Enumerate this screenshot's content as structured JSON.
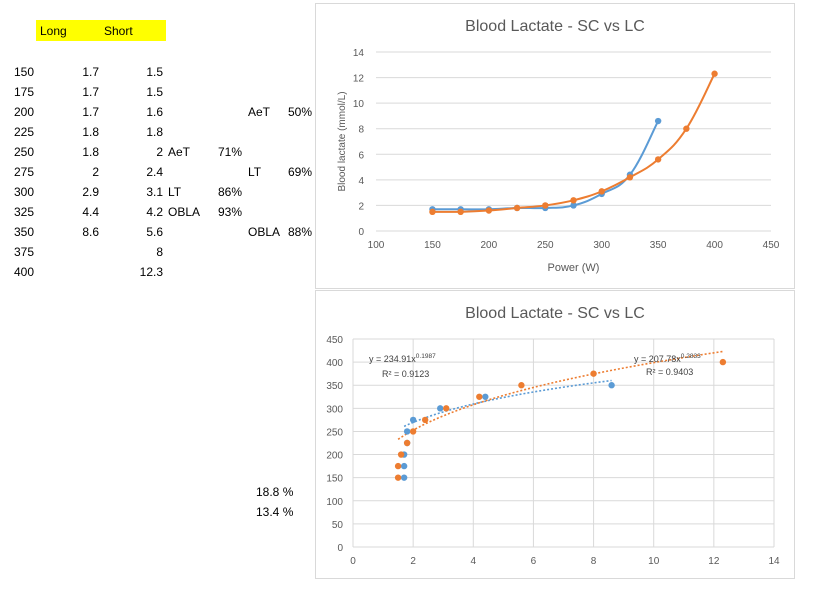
{
  "sheet": {
    "header": {
      "long": "Long",
      "short": "Short"
    },
    "rows": [
      {
        "power": "150",
        "long": "1.7",
        "short": "1.5"
      },
      {
        "power": "175",
        "long": "1.7",
        "short": "1.5"
      },
      {
        "power": "200",
        "long": "1.7",
        "short": "1.6"
      },
      {
        "power": "225",
        "long": "1.8",
        "short": "1.8"
      },
      {
        "power": "250",
        "long": "1.8",
        "short": "2"
      },
      {
        "power": "275",
        "long": "2",
        "short": "2.4"
      },
      {
        "power": "300",
        "long": "2.9",
        "short": "3.1"
      },
      {
        "power": "325",
        "long": "4.4",
        "short": "4.2"
      },
      {
        "power": "350",
        "long": "8.6",
        "short": "5.6"
      },
      {
        "power": "375",
        "long": "",
        "short": "8"
      },
      {
        "power": "400",
        "long": "",
        "short": "12.3"
      }
    ],
    "notes_mid": [
      {
        "label": "AeT",
        "pct": "71%"
      },
      {
        "label": "LT",
        "pct": "86%"
      },
      {
        "label": "OBLA",
        "pct": "93%"
      }
    ],
    "notes_right": [
      {
        "label": "AeT",
        "pct": "50%"
      },
      {
        "label": "LT",
        "pct": "69%"
      },
      {
        "label": "OBLA",
        "pct": "88%"
      }
    ],
    "bottom_pcts": [
      "18.8 %",
      "13.4 %"
    ]
  },
  "colors": {
    "long": "#5b9bd5",
    "short": "#ed7d31",
    "highlight": "#ffff00"
  },
  "chart_data": [
    {
      "type": "line",
      "title": "Blood Lactate - SC vs LC",
      "xlabel": "Power (W)",
      "ylabel": "Blood lactate (mmol/L)",
      "xlim": [
        100,
        450
      ],
      "ylim": [
        0,
        14
      ],
      "xticks": [
        100,
        150,
        200,
        250,
        300,
        350,
        400,
        450
      ],
      "yticks": [
        0,
        2,
        4,
        6,
        8,
        10,
        12,
        14
      ],
      "grid": true,
      "series": [
        {
          "x": [
            150,
            175,
            200,
            225,
            250,
            275,
            300,
            325,
            350
          ],
          "values": [
            1.7,
            1.7,
            1.7,
            1.8,
            1.8,
            2,
            2.9,
            4.4,
            8.6
          ]
        },
        {
          "x": [
            150,
            175,
            200,
            225,
            250,
            275,
            300,
            325,
            350,
            375,
            400
          ],
          "values": [
            1.5,
            1.5,
            1.6,
            1.8,
            2,
            2.4,
            3.1,
            4.2,
            5.6,
            8,
            12.3
          ]
        }
      ]
    },
    {
      "type": "scatter",
      "title": "Blood Lactate - SC vs LC",
      "xlim": [
        0,
        14
      ],
      "ylim": [
        0,
        450
      ],
      "xticks": [
        0,
        2,
        4,
        6,
        8,
        10,
        12,
        14
      ],
      "yticks": [
        0,
        50,
        100,
        150,
        200,
        250,
        300,
        350,
        400,
        450
      ],
      "grid": true,
      "series": [
        {
          "x": [
            1.7,
            1.7,
            1.7,
            1.8,
            1.8,
            2,
            2.9,
            4.4,
            8.6
          ],
          "values": [
            150,
            175,
            200,
            225,
            250,
            275,
            300,
            325,
            350
          ],
          "trendline": {
            "equation": "y = 234.91x",
            "exponent": "0.1987",
            "r2": "R² = 0.9123",
            "a": 234.91,
            "b": 0.1987
          }
        },
        {
          "x": [
            1.5,
            1.5,
            1.6,
            1.8,
            2,
            2.4,
            3.1,
            4.2,
            5.6,
            8,
            12.3
          ],
          "values": [
            150,
            175,
            200,
            225,
            250,
            275,
            300,
            325,
            350,
            375,
            400
          ],
          "trendline": {
            "equation": "y = 207.78x",
            "exponent": "0.2833",
            "r2": "R² = 0.9403",
            "a": 207.78,
            "b": 0.2833
          }
        }
      ]
    }
  ]
}
